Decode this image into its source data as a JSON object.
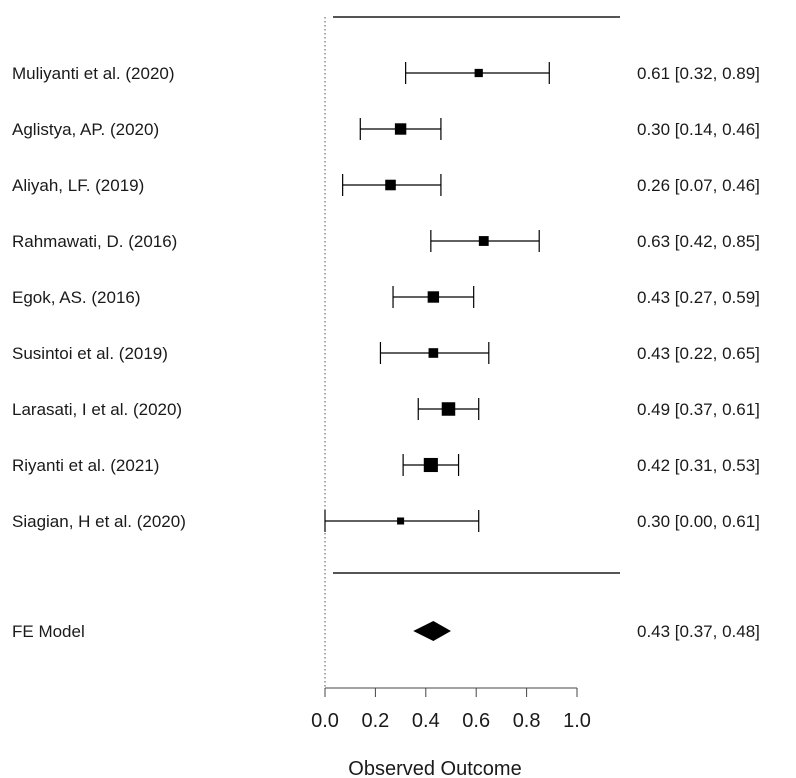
{
  "chart_data": {
    "type": "forest",
    "xlabel": "Observed Outcome",
    "xlim": [
      0.0,
      1.0
    ],
    "x_ticks": [
      "0.0",
      "0.2",
      "0.4",
      "0.6",
      "0.8",
      "1.0"
    ],
    "reference_line": 0,
    "studies": [
      {
        "label": "Muliyanti et al. (2020)",
        "estimate": 0.61,
        "lower": 0.32,
        "upper": 0.89,
        "ci_text": "0.61 [0.32, 0.89]",
        "weight": 0.9
      },
      {
        "label": "Aglistya, AP. (2020)",
        "estimate": 0.3,
        "lower": 0.14,
        "upper": 0.46,
        "ci_text": "0.30 [0.14, 0.46]",
        "weight": 2.5
      },
      {
        "label": "Aliyah, LF. (2019)",
        "estimate": 0.26,
        "lower": 0.07,
        "upper": 0.46,
        "ci_text": "0.26 [0.07, 0.46]",
        "weight": 2.0
      },
      {
        "label": "Rahmawati, D. (2016)",
        "estimate": 0.63,
        "lower": 0.42,
        "upper": 0.85,
        "ci_text": "0.63 [0.42, 0.85]",
        "weight": 1.6
      },
      {
        "label": "Egok, AS. (2016)",
        "estimate": 0.43,
        "lower": 0.27,
        "upper": 0.59,
        "ci_text": "0.43 [0.27, 0.59]",
        "weight": 2.5
      },
      {
        "label": "Susintoi et al. (2019)",
        "estimate": 0.43,
        "lower": 0.22,
        "upper": 0.65,
        "ci_text": "0.43 [0.22, 0.65]",
        "weight": 1.5
      },
      {
        "label": "Larasati, I et al. (2020)",
        "estimate": 0.49,
        "lower": 0.37,
        "upper": 0.61,
        "ci_text": "0.49 [0.37, 0.61]",
        "weight": 4.0
      },
      {
        "label": "Riyanti et al. (2021)",
        "estimate": 0.42,
        "lower": 0.31,
        "upper": 0.53,
        "ci_text": "0.42 [0.31, 0.53]",
        "weight": 4.5
      },
      {
        "label": "Siagian, H et al. (2020)",
        "estimate": 0.3,
        "lower": 0.0,
        "upper": 0.61,
        "ci_text": "0.30 [0.00, 0.61]",
        "weight": 0.5
      }
    ],
    "summary": {
      "label": "FE Model",
      "estimate": 0.43,
      "lower": 0.37,
      "upper": 0.48,
      "ci_text": "0.43 [0.37, 0.48]"
    }
  }
}
